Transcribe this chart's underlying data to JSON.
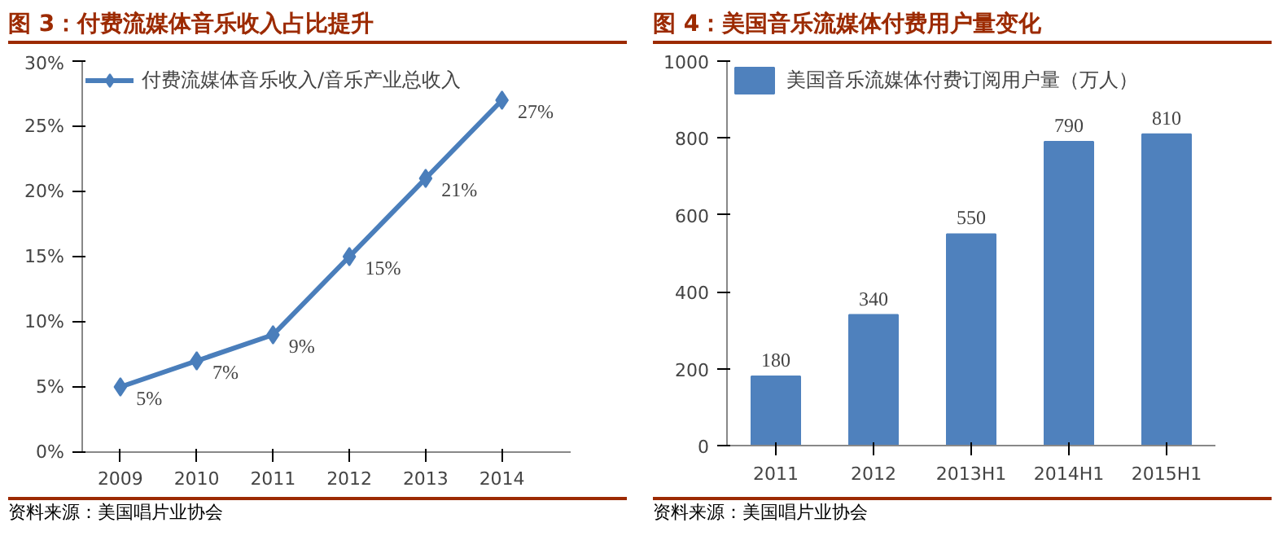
{
  "chart_data": [
    {
      "type": "line",
      "title": "图 3：付费流媒体音乐收入占比提升",
      "categories": [
        "2009",
        "2010",
        "2011",
        "2012",
        "2013",
        "2014"
      ],
      "series": [
        {
          "name": "付费流媒体音乐收入/音乐产业总收入",
          "color": "#4a7ebb",
          "values": [
            5,
            7,
            9,
            15,
            21,
            27
          ],
          "value_labels": [
            "5%",
            "7%",
            "9%",
            "15%",
            "21%",
            "27%"
          ]
        }
      ],
      "ylim": [
        0,
        30
      ],
      "yticks": [
        {
          "value": 0,
          "label": "0%"
        },
        {
          "value": 5,
          "label": "5%"
        },
        {
          "value": 10,
          "label": "10%"
        },
        {
          "value": 15,
          "label": "15%"
        },
        {
          "value": 20,
          "label": "20%"
        },
        {
          "value": 25,
          "label": "25%"
        },
        {
          "value": 30,
          "label": "30%"
        }
      ],
      "marker": "diamond",
      "legend": "top",
      "grid": false,
      "annotations": [
        "资料来源：美国唱片业协会"
      ]
    },
    {
      "type": "bar",
      "title": "图 4：美国音乐流媒体付费用户量变化",
      "categories": [
        "2011",
        "2012",
        "2013H1",
        "2014H1",
        "2015H1"
      ],
      "series": [
        {
          "name": "美国音乐流媒体付费订阅用户量（万人）",
          "color": "#4f81bd",
          "values": [
            180,
            340,
            550,
            790,
            810
          ]
        }
      ],
      "ylim": [
        0,
        1000
      ],
      "yticks": [
        0,
        200,
        400,
        600,
        800,
        1000
      ],
      "data_labels": true,
      "legend": "top",
      "grid": false,
      "annotations": [
        "资料来源：美国唱片业协会"
      ]
    }
  ]
}
